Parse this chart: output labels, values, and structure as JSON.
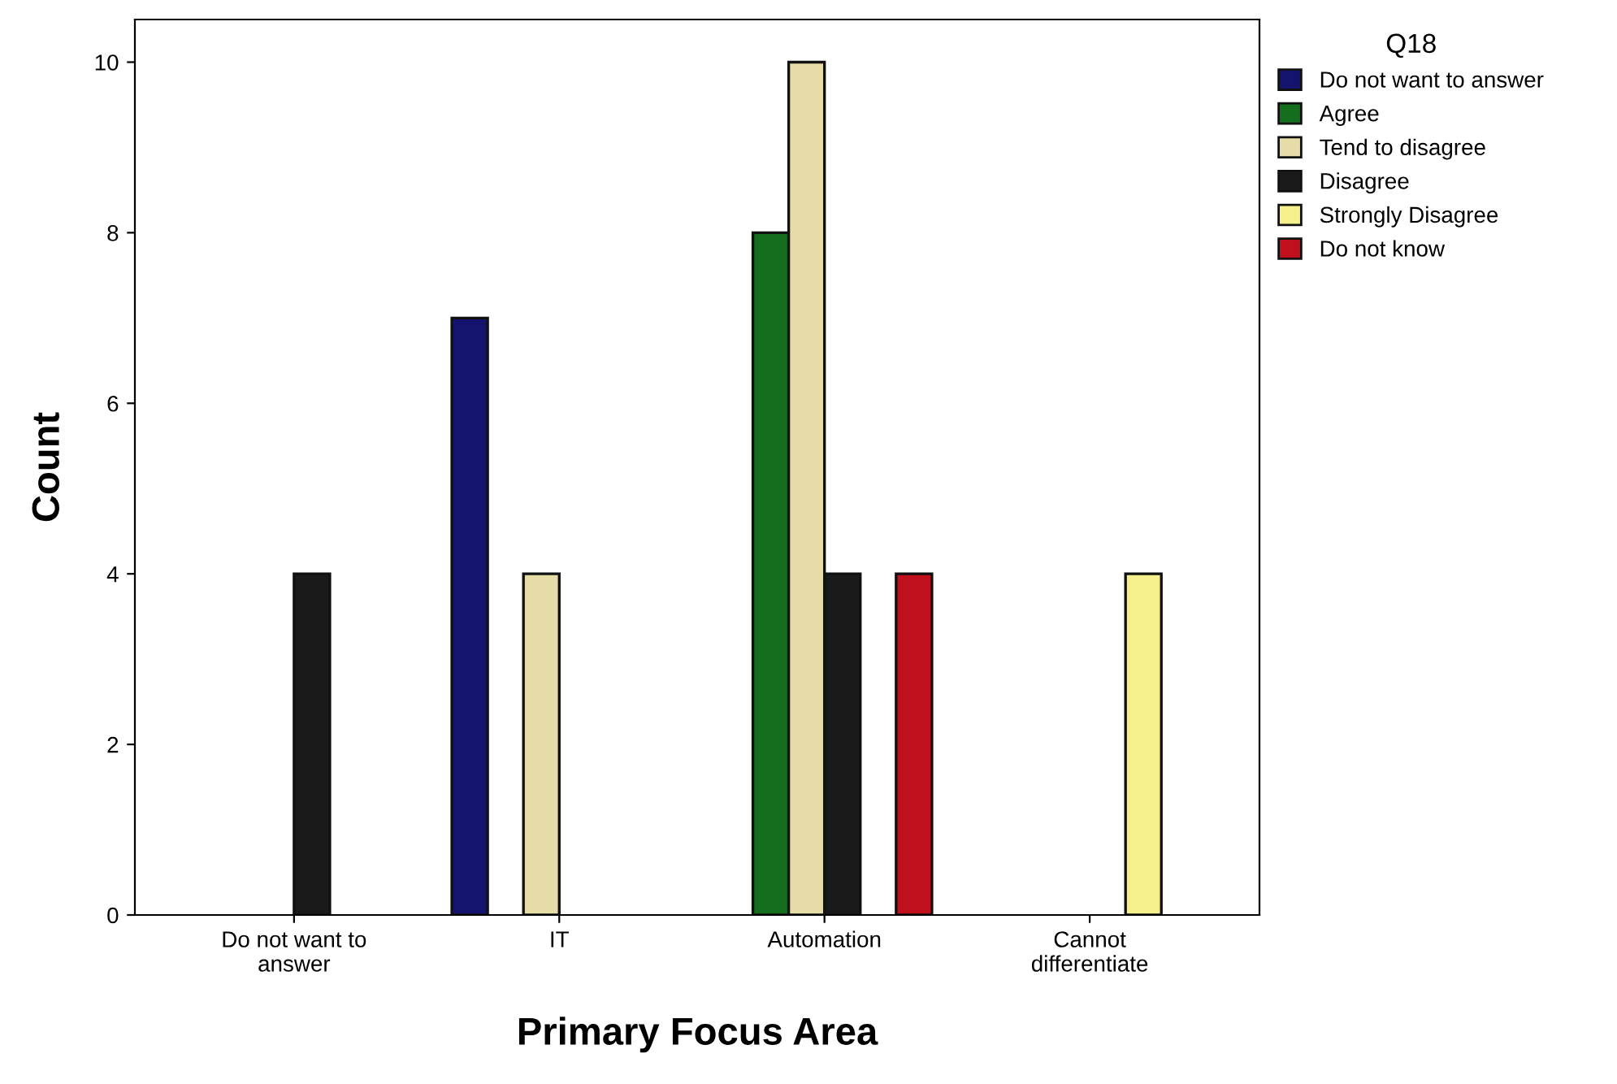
{
  "chart_data": {
    "type": "bar",
    "xlabel": "Primary Focus Area",
    "ylabel": "Count",
    "legend_title": "Q18",
    "categories": [
      "Do not want to\nanswer",
      "IT",
      "Automation",
      "Cannot\ndifferentiate"
    ],
    "series": [
      {
        "name": "Do not want to answer",
        "color": "#14146e",
        "values": [
          null,
          7,
          null,
          null
        ]
      },
      {
        "name": "Agree",
        "color": "#146e1e",
        "values": [
          null,
          null,
          8,
          null
        ]
      },
      {
        "name": "Tend to disagree",
        "color": "#e6dca8",
        "values": [
          null,
          4,
          10,
          null
        ]
      },
      {
        "name": "Disagree",
        "color": "#1a1a1a",
        "values": [
          4,
          null,
          4,
          null
        ]
      },
      {
        "name": "Strongly Disagree",
        "color": "#f5f08c",
        "values": [
          null,
          null,
          null,
          4
        ]
      },
      {
        "name": "Do not know",
        "color": "#c0101e",
        "values": [
          null,
          null,
          4,
          null
        ]
      }
    ],
    "ylim": [
      0,
      10.5
    ],
    "yticks": [
      0,
      2,
      4,
      6,
      8,
      10
    ],
    "grid": false,
    "legend": "top right"
  }
}
